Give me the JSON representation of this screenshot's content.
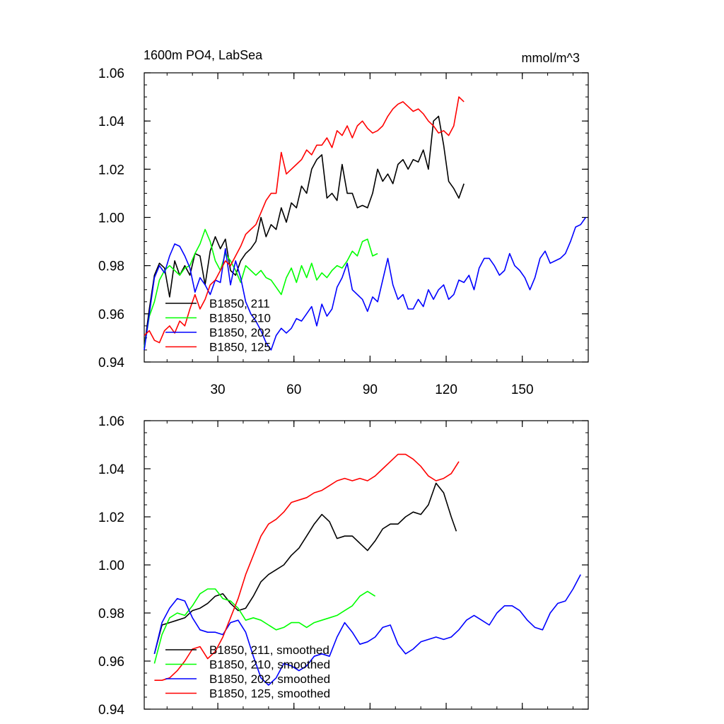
{
  "chart_data": [
    {
      "type": "line",
      "title_left": "1600m PO4, LabSea",
      "title_right": "mmol/m^3",
      "xlim": [
        1,
        176
      ],
      "ylim": [
        0.94,
        1.06
      ],
      "xticks": [
        30,
        60,
        90,
        120,
        150
      ],
      "yticks": [
        0.94,
        0.96,
        0.98,
        1.0,
        1.02,
        1.04,
        1.06
      ],
      "ytick_labels": [
        "0.94",
        "0.96",
        "0.98",
        "1.00",
        "1.02",
        "1.04",
        "1.06"
      ],
      "show_xtick_labels": true,
      "legend_position": "bottom-left",
      "series": [
        {
          "name": "B1850, 211",
          "color": "#000000",
          "x": [
            1,
            3,
            5,
            7,
            9,
            11,
            13,
            15,
            17,
            19,
            21,
            23,
            25,
            27,
            29,
            31,
            33,
            35,
            37,
            39,
            41,
            43,
            45,
            47,
            49,
            51,
            53,
            55,
            57,
            59,
            61,
            63,
            65,
            67,
            69,
            71,
            73,
            75,
            77,
            79,
            81,
            83,
            85,
            87,
            89,
            91,
            93,
            95,
            97,
            99,
            101,
            103,
            105,
            107,
            109,
            111,
            113,
            115,
            117,
            119,
            121,
            123,
            125,
            127
          ],
          "y": [
            0.946,
            0.962,
            0.976,
            0.981,
            0.979,
            0.967,
            0.982,
            0.976,
            0.98,
            0.976,
            0.985,
            0.984,
            0.972,
            0.986,
            0.992,
            0.987,
            0.991,
            0.978,
            0.976,
            0.982,
            0.985,
            0.987,
            0.99,
            1.0,
            0.992,
            0.997,
            0.995,
            1.004,
            0.998,
            1.006,
            1.004,
            1.013,
            1.01,
            1.02,
            1.024,
            1.026,
            1.008,
            1.01,
            1.007,
            1.022,
            1.01,
            1.01,
            1.004,
            1.005,
            1.004,
            1.01,
            1.02,
            1.015,
            1.018,
            1.014,
            1.022,
            1.024,
            1.02,
            1.024,
            1.023,
            1.028,
            1.02,
            1.04,
            1.042,
            1.03,
            1.015,
            1.012,
            1.008,
            1.014
          ]
        },
        {
          "name": "B1850, 210",
          "color": "#00ff00",
          "x": [
            1,
            3,
            5,
            7,
            9,
            11,
            13,
            15,
            17,
            19,
            21,
            23,
            25,
            27,
            29,
            31,
            33,
            35,
            37,
            39,
            41,
            43,
            45,
            47,
            49,
            51,
            53,
            55,
            57,
            59,
            61,
            63,
            65,
            67,
            69,
            71,
            73,
            75,
            77,
            79,
            81,
            83,
            85,
            87,
            89,
            91,
            93
          ],
          "y": [
            0.946,
            0.959,
            0.965,
            0.974,
            0.978,
            0.98,
            0.978,
            0.976,
            0.979,
            0.98,
            0.985,
            0.989,
            0.995,
            0.99,
            0.982,
            0.978,
            0.985,
            0.982,
            0.978,
            0.973,
            0.98,
            0.978,
            0.976,
            0.978,
            0.975,
            0.974,
            0.971,
            0.968,
            0.975,
            0.979,
            0.973,
            0.98,
            0.975,
            0.981,
            0.974,
            0.977,
            0.975,
            0.978,
            0.98,
            0.979,
            0.982,
            0.986,
            0.984,
            0.99,
            0.991,
            0.984,
            0.985
          ]
        },
        {
          "name": "B1850, 202",
          "color": "#0000ff",
          "x": [
            1,
            3,
            5,
            7,
            9,
            11,
            13,
            15,
            17,
            19,
            21,
            23,
            25,
            27,
            29,
            31,
            33,
            35,
            37,
            39,
            41,
            43,
            45,
            47,
            49,
            51,
            53,
            55,
            57,
            59,
            61,
            63,
            65,
            67,
            69,
            71,
            73,
            75,
            77,
            79,
            81,
            83,
            85,
            87,
            89,
            91,
            93,
            95,
            97,
            99,
            101,
            103,
            105,
            107,
            109,
            111,
            113,
            115,
            117,
            119,
            121,
            123,
            125,
            127,
            129,
            131,
            133,
            135,
            137,
            139,
            141,
            143,
            145,
            147,
            149,
            151,
            153,
            155,
            157,
            159,
            161,
            163,
            165,
            167,
            169,
            171,
            173,
            175
          ],
          "y": [
            0.945,
            0.96,
            0.975,
            0.98,
            0.977,
            0.984,
            0.989,
            0.988,
            0.984,
            0.979,
            0.969,
            0.975,
            0.972,
            0.968,
            0.974,
            0.973,
            0.987,
            0.972,
            0.982,
            0.975,
            0.965,
            0.96,
            0.957,
            0.953,
            0.948,
            0.945,
            0.951,
            0.954,
            0.952,
            0.954,
            0.958,
            0.957,
            0.96,
            0.963,
            0.955,
            0.964,
            0.959,
            0.962,
            0.971,
            0.975,
            0.981,
            0.97,
            0.968,
            0.966,
            0.961,
            0.967,
            0.965,
            0.974,
            0.983,
            0.972,
            0.966,
            0.968,
            0.962,
            0.962,
            0.966,
            0.963,
            0.97,
            0.966,
            0.97,
            0.972,
            0.966,
            0.968,
            0.974,
            0.973,
            0.976,
            0.97,
            0.979,
            0.983,
            0.983,
            0.98,
            0.976,
            0.978,
            0.985,
            0.98,
            0.978,
            0.975,
            0.97,
            0.975,
            0.983,
            0.986,
            0.981,
            0.982,
            0.983,
            0.985,
            0.99,
            0.996,
            0.997,
            1.0
          ]
        },
        {
          "name": "B1850, 125",
          "color": "#ff0000",
          "x": [
            1,
            3,
            5,
            7,
            9,
            11,
            13,
            15,
            17,
            19,
            21,
            23,
            25,
            27,
            29,
            31,
            33,
            35,
            37,
            39,
            41,
            43,
            45,
            47,
            49,
            51,
            53,
            55,
            57,
            59,
            61,
            63,
            65,
            67,
            69,
            71,
            73,
            75,
            77,
            79,
            81,
            83,
            85,
            87,
            89,
            91,
            93,
            95,
            97,
            99,
            101,
            103,
            105,
            107,
            109,
            111,
            113,
            115,
            117,
            119,
            121,
            123,
            125,
            127
          ],
          "y": [
            0.951,
            0.953,
            0.949,
            0.948,
            0.953,
            0.955,
            0.952,
            0.957,
            0.955,
            0.962,
            0.968,
            0.962,
            0.966,
            0.972,
            0.974,
            0.978,
            0.982,
            0.98,
            0.984,
            0.988,
            0.993,
            0.995,
            0.997,
            1.002,
            1.007,
            1.01,
            1.01,
            1.027,
            1.018,
            1.02,
            1.022,
            1.024,
            1.028,
            1.026,
            1.03,
            1.03,
            1.033,
            1.029,
            1.036,
            1.034,
            1.038,
            1.033,
            1.038,
            1.04,
            1.037,
            1.035,
            1.036,
            1.038,
            1.042,
            1.045,
            1.047,
            1.048,
            1.046,
            1.044,
            1.045,
            1.043,
            1.04,
            1.038,
            1.035,
            1.036,
            1.034,
            1.038,
            1.05,
            1.048
          ]
        }
      ]
    },
    {
      "type": "line",
      "title_left": "",
      "title_right": "",
      "xlim": [
        1,
        176
      ],
      "ylim": [
        0.94,
        1.06
      ],
      "xticks": [
        30,
        60,
        90,
        120,
        150
      ],
      "yticks": [
        0.94,
        0.96,
        0.98,
        1.0,
        1.02,
        1.04,
        1.06
      ],
      "ytick_labels": [
        "0.94",
        "0.96",
        "0.98",
        "1.00",
        "1.02",
        "1.04",
        "1.06"
      ],
      "show_xtick_labels": false,
      "legend_position": "bottom-left",
      "series": [
        {
          "name": "B1850, 211, smoothed",
          "color": "#000000",
          "x": [
            5,
            8,
            11,
            14,
            17,
            20,
            23,
            26,
            29,
            32,
            35,
            38,
            41,
            44,
            47,
            50,
            53,
            56,
            59,
            62,
            65,
            68,
            71,
            74,
            77,
            80,
            83,
            86,
            89,
            92,
            95,
            98,
            101,
            104,
            107,
            110,
            113,
            116,
            119,
            122,
            124
          ],
          "y": [
            0.963,
            0.975,
            0.976,
            0.977,
            0.978,
            0.981,
            0.982,
            0.984,
            0.987,
            0.988,
            0.984,
            0.981,
            0.982,
            0.987,
            0.993,
            0.996,
            0.998,
            1.0,
            1.004,
            1.007,
            1.012,
            1.017,
            1.021,
            1.018,
            1.011,
            1.012,
            1.012,
            1.009,
            1.006,
            1.01,
            1.015,
            1.017,
            1.017,
            1.02,
            1.022,
            1.021,
            1.025,
            1.034,
            1.03,
            1.02,
            1.014
          ]
        },
        {
          "name": "B1850, 210, smoothed",
          "color": "#00ff00",
          "x": [
            5,
            8,
            11,
            14,
            17,
            20,
            23,
            26,
            29,
            32,
            35,
            38,
            41,
            44,
            47,
            50,
            53,
            56,
            59,
            62,
            65,
            68,
            71,
            74,
            77,
            80,
            83,
            86,
            89,
            92
          ],
          "y": [
            0.959,
            0.971,
            0.978,
            0.98,
            0.979,
            0.983,
            0.988,
            0.99,
            0.99,
            0.986,
            0.985,
            0.982,
            0.977,
            0.978,
            0.977,
            0.975,
            0.973,
            0.974,
            0.976,
            0.976,
            0.974,
            0.976,
            0.977,
            0.978,
            0.979,
            0.981,
            0.983,
            0.987,
            0.989,
            0.987
          ]
        },
        {
          "name": "B1850, 202, smoothed",
          "color": "#0000ff",
          "x": [
            5,
            8,
            11,
            14,
            17,
            20,
            23,
            26,
            29,
            32,
            35,
            38,
            41,
            44,
            47,
            50,
            53,
            56,
            59,
            62,
            65,
            68,
            71,
            74,
            77,
            80,
            83,
            86,
            89,
            92,
            95,
            98,
            101,
            104,
            107,
            110,
            113,
            116,
            119,
            122,
            125,
            128,
            131,
            134,
            137,
            140,
            143,
            146,
            149,
            152,
            155,
            158,
            161,
            164,
            167,
            170,
            173
          ],
          "y": [
            0.963,
            0.976,
            0.982,
            0.986,
            0.985,
            0.978,
            0.973,
            0.972,
            0.972,
            0.971,
            0.976,
            0.977,
            0.972,
            0.962,
            0.953,
            0.95,
            0.953,
            0.959,
            0.958,
            0.956,
            0.958,
            0.962,
            0.963,
            0.962,
            0.97,
            0.976,
            0.972,
            0.967,
            0.968,
            0.97,
            0.974,
            0.975,
            0.967,
            0.963,
            0.965,
            0.968,
            0.969,
            0.97,
            0.969,
            0.97,
            0.973,
            0.977,
            0.979,
            0.977,
            0.975,
            0.98,
            0.983,
            0.983,
            0.981,
            0.977,
            0.974,
            0.973,
            0.98,
            0.984,
            0.985,
            0.99,
            0.996
          ]
        },
        {
          "name": "B1850, 125, smoothed",
          "color": "#ff0000",
          "x": [
            5,
            8,
            11,
            14,
            17,
            20,
            23,
            26,
            29,
            32,
            35,
            38,
            41,
            44,
            47,
            50,
            53,
            56,
            59,
            62,
            65,
            68,
            71,
            74,
            77,
            80,
            83,
            86,
            89,
            92,
            95,
            98,
            101,
            104,
            107,
            110,
            113,
            116,
            119,
            122,
            125
          ],
          "y": [
            0.952,
            0.952,
            0.953,
            0.956,
            0.96,
            0.965,
            0.966,
            0.961,
            0.964,
            0.97,
            0.978,
            0.986,
            0.996,
            1.004,
            1.012,
            1.017,
            1.019,
            1.022,
            1.026,
            1.027,
            1.028,
            1.03,
            1.031,
            1.033,
            1.035,
            1.036,
            1.035,
            1.036,
            1.035,
            1.037,
            1.04,
            1.043,
            1.046,
            1.046,
            1.044,
            1.041,
            1.037,
            1.035,
            1.036,
            1.038,
            1.043
          ]
        }
      ]
    }
  ]
}
